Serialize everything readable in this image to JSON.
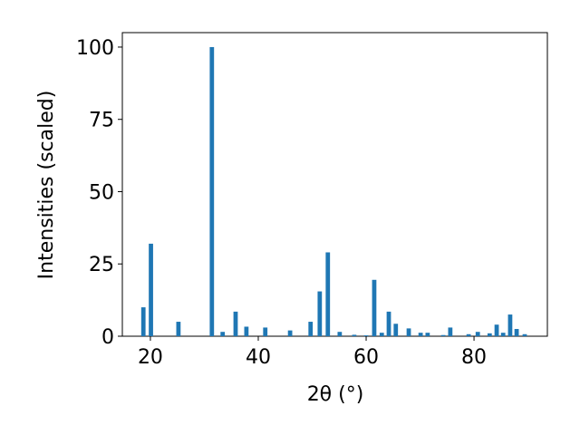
{
  "chart_data": {
    "type": "bar",
    "xlabel": "2θ (°)",
    "ylabel": "Intensities (scaled)",
    "color": "#1f77b4",
    "x": [
      18.7,
      20.1,
      25.2,
      31.4,
      33.4,
      35.8,
      37.8,
      41.3,
      45.9,
      49.7,
      51.4,
      52.9,
      55.1,
      57.8,
      60.0,
      61.5,
      62.9,
      64.2,
      65.5,
      67.9,
      70.1,
      71.4,
      74.3,
      75.6,
      79.0,
      80.7,
      82.9,
      84.2,
      85.4,
      86.7,
      87.9,
      89.4
    ],
    "values": [
      10,
      32,
      5,
      100,
      1.5,
      8.5,
      3.3,
      3,
      2,
      5,
      15.5,
      29,
      1.5,
      0.5,
      0.3,
      19.5,
      1.2,
      8.5,
      4.3,
      2.7,
      1.2,
      1.2,
      0.4,
      3,
      0.7,
      1.5,
      1,
      4,
      1.2,
      7.5,
      2.5,
      0.7
    ],
    "xlim": [
      14.8,
      93.6
    ],
    "ylim": [
      0,
      105
    ],
    "xticks": [
      20,
      40,
      60,
      80
    ],
    "yticks": [
      0,
      25,
      50,
      75,
      100
    ],
    "grid": false
  }
}
